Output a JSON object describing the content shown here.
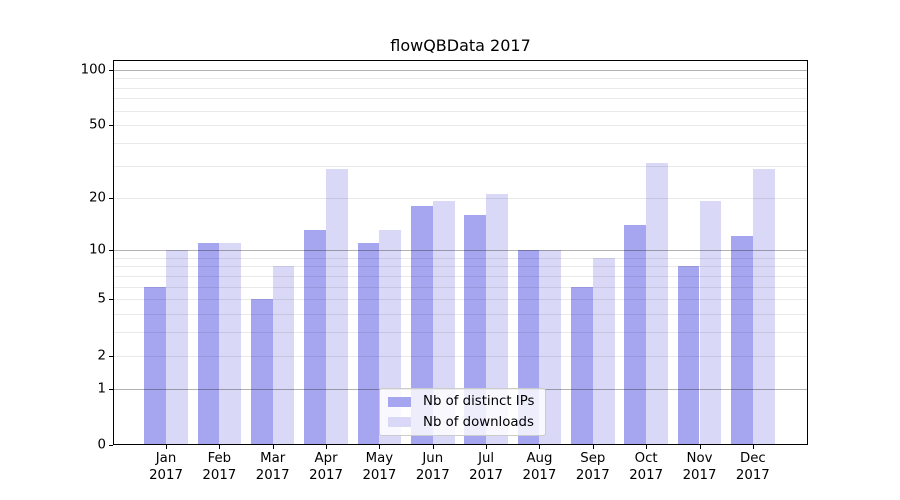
{
  "title": "flowQBData 2017",
  "chart_data": {
    "type": "bar",
    "title": "flowQBData 2017",
    "categories": [
      "Jan",
      "Feb",
      "Mar",
      "Apr",
      "May",
      "Jun",
      "Jul",
      "Aug",
      "Sep",
      "Oct",
      "Nov",
      "Dec"
    ],
    "category_year": "2017",
    "series": [
      {
        "name": "Nb of distinct IPs",
        "color": "#a6a6f0",
        "values": [
          6,
          11,
          5,
          13,
          11,
          18,
          16,
          10,
          6,
          14,
          8,
          12
        ]
      },
      {
        "name": "Nb of downloads",
        "color": "#d9d9f7",
        "values": [
          10,
          11,
          8,
          29,
          13,
          19,
          21,
          10,
          9,
          31,
          19,
          29
        ]
      }
    ],
    "yscale": "log1p",
    "yticks": [
      0,
      1,
      2,
      5,
      10,
      20,
      50,
      100
    ],
    "ytick_major": [
      1,
      10,
      100
    ],
    "ylim": [
      0,
      113
    ],
    "xlabel": "",
    "ylabel": "",
    "grid": true,
    "legend_position": "lower center"
  }
}
